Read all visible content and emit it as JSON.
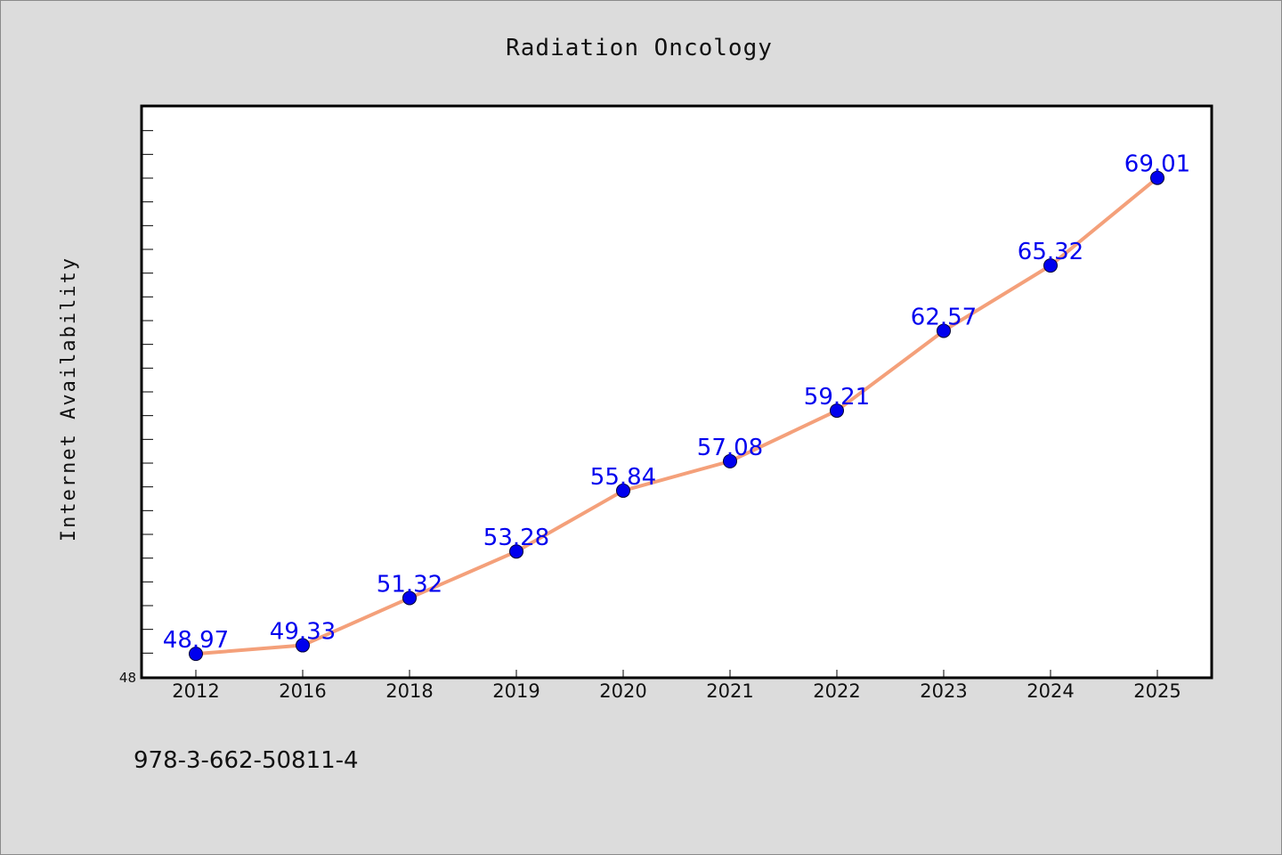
{
  "chart_data": {
    "type": "line",
    "title": "Radiation Oncology",
    "ylabel": "Internet Availability",
    "xlabel": "",
    "categories": [
      "2012",
      "2016",
      "2018",
      "2019",
      "2020",
      "2021",
      "2022",
      "2023",
      "2024",
      "2025"
    ],
    "values": [
      48.97,
      49.33,
      51.32,
      53.28,
      55.84,
      57.08,
      59.21,
      62.57,
      65.32,
      69.01
    ],
    "data_labels": [
      "48.97",
      "49.33",
      "51.32",
      "53.28",
      "55.84",
      "57.08",
      "59.21",
      "62.57",
      "65.32",
      "69.01"
    ],
    "ylim": [
      48,
      72
    ],
    "y_tick_labels": [
      "48"
    ],
    "grid": false,
    "line_color": "#f4a07a",
    "marker_color": "#0000ee",
    "label_color": "#0000ee"
  },
  "footer": {
    "isbn": "978-3-662-50811-4"
  }
}
